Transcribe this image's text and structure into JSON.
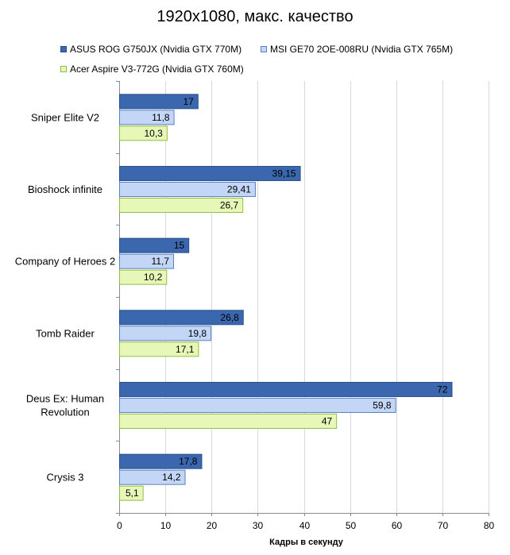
{
  "chart_data": {
    "type": "bar",
    "orientation": "horizontal",
    "title": "1920x1080, макс. качество",
    "xlabel": "Кадры  в секунду",
    "ylabel": "",
    "xlim": [
      0,
      80
    ],
    "x_ticks": [
      0,
      10,
      20,
      30,
      40,
      50,
      60,
      70,
      80
    ],
    "grid": true,
    "legend_position": "top",
    "categories": [
      "Sniper Elite V2",
      "Bioshock infinite",
      "Company of Heroes 2",
      "Tomb Raider",
      "Deus Ex: Human Revolution",
      "Crysis 3"
    ],
    "category_lines": [
      [
        "Sniper Elite V2"
      ],
      [
        "Bioshock infinite"
      ],
      [
        "Company of Heroes 2"
      ],
      [
        "Tomb Raider"
      ],
      [
        "Deus Ex: Human",
        "Revolution"
      ],
      [
        "Crysis 3"
      ]
    ],
    "series": [
      {
        "name": "ASUS ROG G750JX (Nvidia GTX 770M)",
        "values": [
          17,
          39.15,
          15,
          26.8,
          72,
          17.8
        ],
        "labels": [
          "17",
          "39,15",
          "15",
          "26,8",
          "72",
          "17,8"
        ],
        "color": "#3a67ad"
      },
      {
        "name": "MSI GE70 2OE-008RU (Nvidia GTX 765M)",
        "values": [
          11.8,
          29.41,
          11.7,
          19.8,
          59.8,
          14.2
        ],
        "labels": [
          "11,8",
          "29,41",
          "11,7",
          "19,8",
          "59,8",
          "14,2"
        ],
        "color": "#c3d6f5"
      },
      {
        "name": "Acer Aspire V3-772G (Nvidia GTX 760M)",
        "values": [
          10.3,
          26.7,
          10.2,
          17.1,
          47,
          5.1
        ],
        "labels": [
          "10,3",
          "26,7",
          "10,2",
          "17,1",
          "47",
          "5,1"
        ],
        "color": "#e6f7b8"
      }
    ]
  }
}
